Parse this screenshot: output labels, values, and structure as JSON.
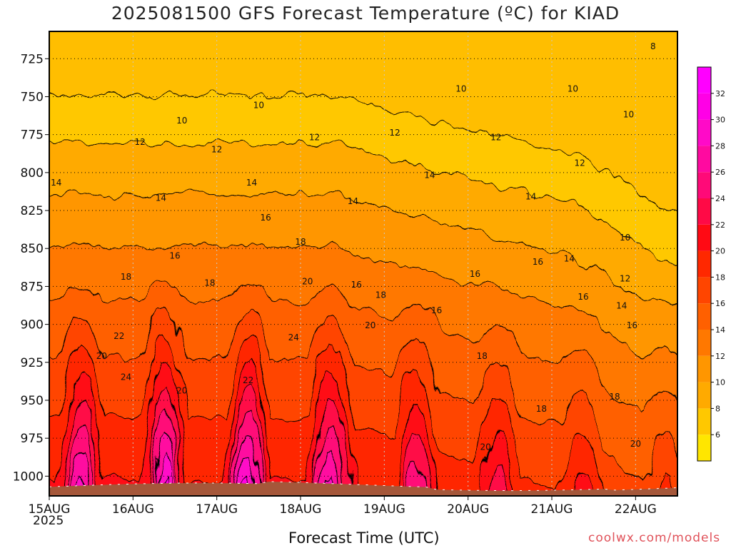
{
  "title": "2025081500 GFS Forecast Temperature (ºC) for KIAD",
  "credit": "coolwx.com/models",
  "chart_data": {
    "type": "heatmap",
    "title": "2025081500 GFS Forecast Temperature (ºC) for KIAD",
    "xlabel": "Forecast Time (UTC)",
    "ylabel": "",
    "x_year_label": "2025",
    "x_ticks": [
      "15AUG",
      "16AUG",
      "17AUG",
      "18AUG",
      "19AUG",
      "20AUG",
      "21AUG",
      "22AUG"
    ],
    "xlim": [
      0,
      180
    ],
    "x_unit": "hours since 2025-08-15 00 UTC",
    "y_ticks": [
      725,
      750,
      775,
      800,
      825,
      850,
      875,
      900,
      925,
      950,
      975,
      1000
    ],
    "ylim": [
      1013,
      707
    ],
    "y_unit": "hPa",
    "colorbar": {
      "ticks": [
        6,
        8,
        10,
        12,
        14,
        16,
        18,
        20,
        22,
        24,
        26,
        28,
        30,
        32
      ],
      "colors": [
        "#ffe600",
        "#ffc800",
        "#ffaa00",
        "#ff9600",
        "#ff7800",
        "#ff6000",
        "#ff4500",
        "#ff2800",
        "#ff0a14",
        "#ff0a46",
        "#ff0a78",
        "#ff0aa0",
        "#ff0ac8",
        "#ff00e6",
        "#ff00ff"
      ]
    },
    "grid": true,
    "surface_fill": "#a5573a",
    "contour_labels": [
      {
        "text": "8",
        "x": 173,
        "p": 717
      },
      {
        "text": "10",
        "x": 118,
        "p": 745
      },
      {
        "text": "10",
        "x": 60,
        "p": 756
      },
      {
        "text": "10",
        "x": 150,
        "p": 745
      },
      {
        "text": "10",
        "x": 38,
        "p": 766
      },
      {
        "text": "10",
        "x": 166,
        "p": 762
      },
      {
        "text": "10",
        "x": 165,
        "p": 843
      },
      {
        "text": "12",
        "x": 26,
        "p": 780
      },
      {
        "text": "12",
        "x": 48,
        "p": 785
      },
      {
        "text": "12",
        "x": 76,
        "p": 777
      },
      {
        "text": "12",
        "x": 99,
        "p": 774
      },
      {
        "text": "12",
        "x": 128,
        "p": 777
      },
      {
        "text": "12",
        "x": 152,
        "p": 794
      },
      {
        "text": "12",
        "x": 165,
        "p": 870
      },
      {
        "text": "14",
        "x": 2,
        "p": 807
      },
      {
        "text": "14",
        "x": 32,
        "p": 817
      },
      {
        "text": "14",
        "x": 58,
        "p": 807
      },
      {
        "text": "14",
        "x": 87,
        "p": 819
      },
      {
        "text": "14",
        "x": 109,
        "p": 802
      },
      {
        "text": "14",
        "x": 138,
        "p": 816
      },
      {
        "text": "14",
        "x": 149,
        "p": 857
      },
      {
        "text": "14",
        "x": 164,
        "p": 888
      },
      {
        "text": "16",
        "x": 36,
        "p": 855
      },
      {
        "text": "16",
        "x": 62,
        "p": 830
      },
      {
        "text": "16",
        "x": 88,
        "p": 874
      },
      {
        "text": "16",
        "x": 111,
        "p": 891
      },
      {
        "text": "16",
        "x": 122,
        "p": 867
      },
      {
        "text": "16",
        "x": 140,
        "p": 859
      },
      {
        "text": "16",
        "x": 153,
        "p": 882
      },
      {
        "text": "16",
        "x": 167,
        "p": 901
      },
      {
        "text": "18",
        "x": 22,
        "p": 869
      },
      {
        "text": "18",
        "x": 46,
        "p": 873
      },
      {
        "text": "18",
        "x": 72,
        "p": 846
      },
      {
        "text": "18",
        "x": 95,
        "p": 881
      },
      {
        "text": "18",
        "x": 124,
        "p": 921
      },
      {
        "text": "18",
        "x": 141,
        "p": 956
      },
      {
        "text": "18",
        "x": 162,
        "p": 948
      },
      {
        "text": "20",
        "x": 15,
        "p": 921
      },
      {
        "text": "20",
        "x": 38,
        "p": 944
      },
      {
        "text": "20",
        "x": 74,
        "p": 872
      },
      {
        "text": "20",
        "x": 92,
        "p": 901
      },
      {
        "text": "20",
        "x": 125,
        "p": 981
      },
      {
        "text": "20",
        "x": 168,
        "p": 979
      },
      {
        "text": "22",
        "x": 20,
        "p": 908
      },
      {
        "text": "22",
        "x": 57,
        "p": 937
      },
      {
        "text": "24",
        "x": 22,
        "p": 935
      },
      {
        "text": "24",
        "x": 70,
        "p": 909
      }
    ]
  }
}
